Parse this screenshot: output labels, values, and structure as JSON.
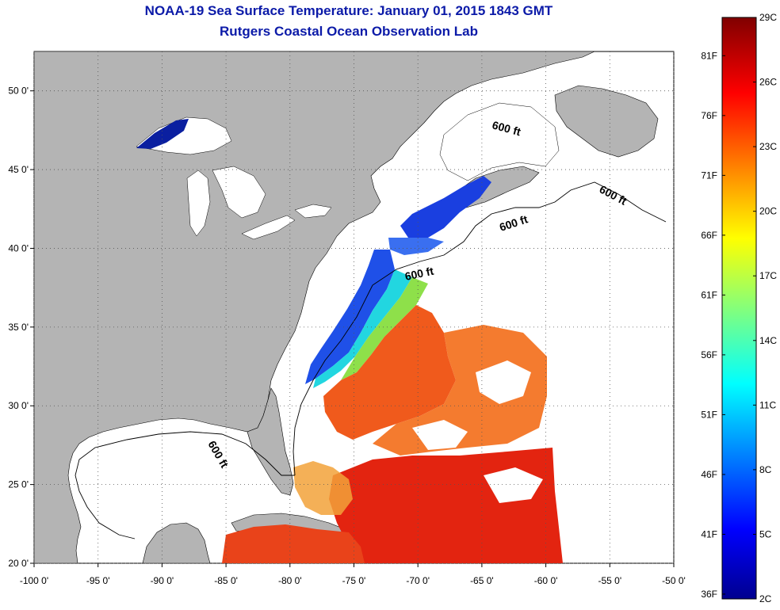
{
  "title": {
    "line1": "NOAA-19 Sea Surface Temperature:  January 01, 2015 1843 GMT",
    "line2": "Rutgers Coastal Ocean Observation Lab"
  },
  "axes": {
    "lon_ticks": [
      {
        "value": -100,
        "label": "-100 0'"
      },
      {
        "value": -95,
        "label": "-95 0'"
      },
      {
        "value": -90,
        "label": "-90 0'"
      },
      {
        "value": -85,
        "label": "-85 0'"
      },
      {
        "value": -80,
        "label": "-80 0'"
      },
      {
        "value": -75,
        "label": "-75 0'"
      },
      {
        "value": -70,
        "label": "-70 0'"
      },
      {
        "value": -65,
        "label": "-65 0'"
      },
      {
        "value": -60,
        "label": "-60 0'"
      },
      {
        "value": -55,
        "label": "-55 0'"
      },
      {
        "value": -50,
        "label": "-50 0'"
      }
    ],
    "lat_ticks": [
      {
        "value": 50,
        "label": "50 0'"
      },
      {
        "value": 45,
        "label": "45 0'"
      },
      {
        "value": 40,
        "label": "40 0'"
      },
      {
        "value": 35,
        "label": "35 0'"
      },
      {
        "value": 30,
        "label": "30 0'"
      },
      {
        "value": 25,
        "label": "25 0'"
      },
      {
        "value": 20,
        "label": "20 0'"
      }
    ],
    "lon_range": [
      -100,
      -50
    ],
    "lat_range": [
      20,
      52.5
    ],
    "grid": "dotted"
  },
  "contour_labels": [
    "600 ft",
    "600 ft",
    "600 ft",
    "600 ft",
    "600 ft"
  ],
  "colorbar": {
    "fahrenheit_labels": [
      "36F",
      "41F",
      "46F",
      "51F",
      "56F",
      "61F",
      "66F",
      "71F",
      "76F",
      "81F"
    ],
    "celsius_labels": [
      "2C",
      "5C",
      "8C",
      "11C",
      "14C",
      "17C",
      "20C",
      "23C",
      "26C",
      "29C"
    ],
    "range_c": [
      2,
      29
    ]
  },
  "colors": {
    "land": "#b4b4b4",
    "title": "#0b1aa8",
    "cold": "#00008f",
    "warm": "#e51b00"
  }
}
